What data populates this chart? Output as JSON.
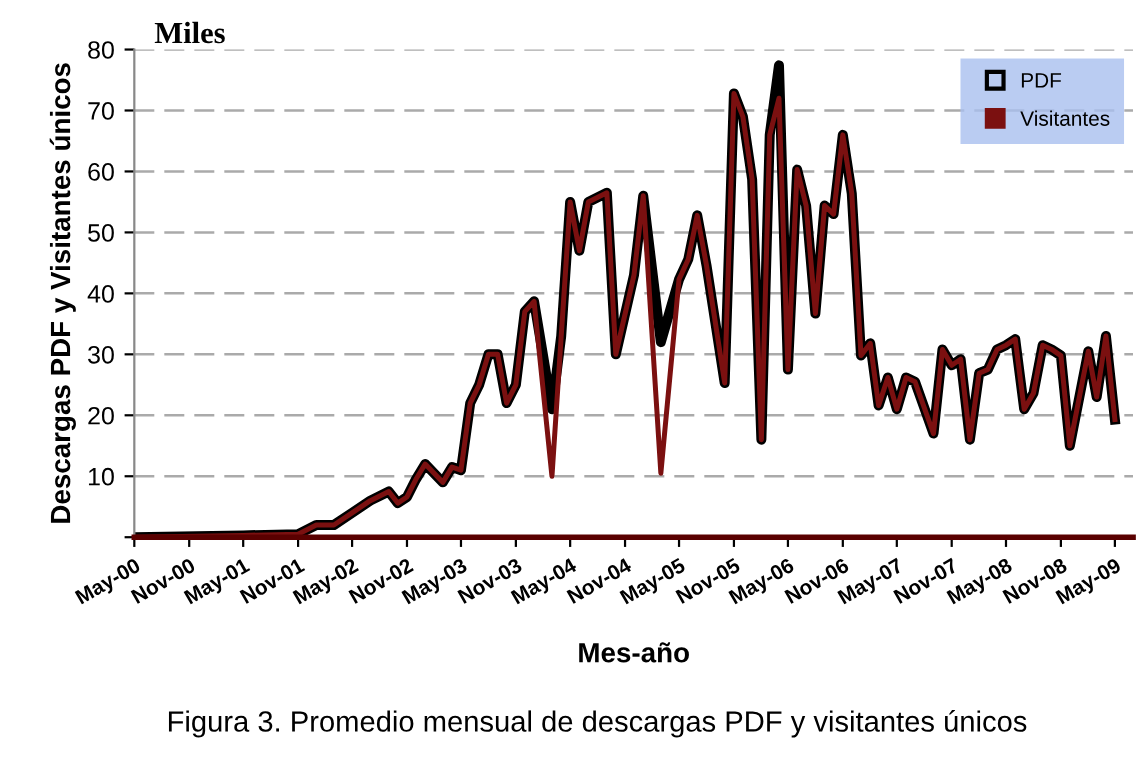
{
  "chart_data": {
    "type": "line",
    "xlabel": "Mes-año",
    "ylabel": "Descargas PDF y Visitantes únicos",
    "annotations": [
      "Miles",
      "Figura 3. Promedio mensual de descargas PDF y visitantes únicos"
    ],
    "series": [
      {
        "name": "PDF",
        "color": "#000000",
        "x": [
          "2000-05",
          "2001-05",
          "2001-11",
          "2002-01",
          "2002-03",
          "2002-05",
          "2002-07",
          "2002-09",
          "2002-10",
          "2002-11",
          "2002-12",
          "2003-01",
          "2003-03",
          "2003-04",
          "2003-05",
          "2003-06",
          "2003-07",
          "2003-08",
          "2003-09",
          "2003-10",
          "2003-11",
          "2003-12",
          "2004-01",
          "2004-03",
          "2004-04",
          "2004-05",
          "2004-06",
          "2004-07",
          "2004-09",
          "2004-10",
          "2004-12",
          "2005-01",
          "2005-03",
          "2005-05",
          "2005-06",
          "2005-07",
          "2005-08",
          "2005-10",
          "2005-11",
          "2005-12",
          "2006-01",
          "2006-02",
          "2006-03",
          "2006-04",
          "2006-05",
          "2006-06",
          "2006-07",
          "2006-08",
          "2006-09",
          "2006-10",
          "2006-11",
          "2006-12",
          "2007-01",
          "2007-02",
          "2007-03",
          "2007-04",
          "2007-05",
          "2007-06",
          "2007-07",
          "2007-09",
          "2007-10",
          "2007-11",
          "2007-12",
          "2008-01",
          "2008-02",
          "2008-03",
          "2008-04",
          "2008-05",
          "2008-06",
          "2008-07",
          "2008-08",
          "2008-09",
          "2008-10",
          "2008-11",
          "2008-12",
          "2009-02",
          "2009-03",
          "2009-04",
          "2009-05"
        ],
        "values": [
          0,
          0.3,
          0.5,
          2,
          2,
          4,
          6,
          7.5,
          5.6,
          6.6,
          9.5,
          12,
          9,
          11.5,
          11,
          22,
          25,
          30,
          30,
          22,
          25,
          37,
          38.7,
          21,
          33,
          55,
          47,
          55,
          56.5,
          30,
          43,
          56,
          32,
          42.3,
          45.6,
          52.8,
          44.6,
          25.3,
          72.8,
          69,
          58.7,
          16,
          66,
          77.4,
          27.5,
          60.3,
          54.4,
          36.7,
          54.4,
          53,
          66,
          56.4,
          29.8,
          31.8,
          21.6,
          26.2,
          21,
          26.2,
          25.5,
          17,
          30.8,
          28.2,
          29.2,
          16,
          26.9,
          27.5,
          30.8,
          31.5,
          32.5,
          21,
          23.6,
          31.5,
          30.8,
          29.8,
          15,
          30.5,
          23,
          33,
          19.3
        ]
      },
      {
        "name": "Visitantes",
        "color": "#7b1010",
        "x": [
          "2000-05",
          "2001-05",
          "2001-11",
          "2002-01",
          "2002-03",
          "2002-05",
          "2002-07",
          "2002-09",
          "2002-10",
          "2002-11",
          "2002-12",
          "2003-01",
          "2003-03",
          "2003-04",
          "2003-05",
          "2003-06",
          "2003-07",
          "2003-08",
          "2003-09",
          "2003-10",
          "2003-11",
          "2003-12",
          "2004-01",
          "2004-03",
          "2004-04",
          "2004-05",
          "2004-06",
          "2004-07",
          "2004-09",
          "2004-10",
          "2004-12",
          "2005-01",
          "2005-03",
          "2005-05",
          "2005-06",
          "2005-07",
          "2005-08",
          "2005-10",
          "2005-11",
          "2005-12",
          "2006-01",
          "2006-02",
          "2006-03",
          "2006-04",
          "2006-05",
          "2006-06",
          "2006-07",
          "2006-08",
          "2006-09",
          "2006-10",
          "2006-11",
          "2006-12",
          "2007-01",
          "2007-02",
          "2007-03",
          "2007-04",
          "2007-05",
          "2007-06",
          "2007-07",
          "2007-09",
          "2007-10",
          "2007-11",
          "2007-12",
          "2008-01",
          "2008-02",
          "2008-03",
          "2008-04",
          "2008-05",
          "2008-06",
          "2008-07",
          "2008-08",
          "2008-09",
          "2008-10",
          "2008-11",
          "2008-12",
          "2009-02",
          "2009-03",
          "2009-04",
          "2009-05"
        ],
        "values": [
          0,
          0.3,
          0.5,
          2,
          2,
          4,
          6,
          7.5,
          5.6,
          6.6,
          9.5,
          12,
          9,
          11.5,
          11,
          22,
          25,
          30,
          30,
          22,
          25,
          37,
          38.7,
          10,
          33,
          55,
          47,
          55,
          56.5,
          30,
          43,
          56,
          10.5,
          42.3,
          45.6,
          52.8,
          44.6,
          25.3,
          72.8,
          69,
          58.7,
          16,
          66,
          72,
          27.5,
          60.3,
          54.4,
          36.7,
          54.4,
          53,
          66,
          56.4,
          29.8,
          31.8,
          21.6,
          26.2,
          21,
          26.2,
          25.5,
          17,
          30.8,
          28.2,
          29.2,
          16,
          26.9,
          27.5,
          30.8,
          31.5,
          32.5,
          21,
          23.6,
          31.5,
          30.8,
          29.8,
          15,
          30.5,
          23,
          33,
          19.3
        ]
      }
    ],
    "xlim": [
      "2000-05",
      "2009-07"
    ],
    "xticks": [
      {
        "value": "2000-05",
        "label": "May-00"
      },
      {
        "value": "2000-11",
        "label": "Nov-00"
      },
      {
        "value": "2001-05",
        "label": "May-01"
      },
      {
        "value": "2001-11",
        "label": "Nov-01"
      },
      {
        "value": "2002-05",
        "label": "May-02"
      },
      {
        "value": "2002-11",
        "label": "Nov-02"
      },
      {
        "value": "2003-05",
        "label": "May-03"
      },
      {
        "value": "2003-11",
        "label": "Nov-03"
      },
      {
        "value": "2004-05",
        "label": "May-04"
      },
      {
        "value": "2004-11",
        "label": "Nov-04"
      },
      {
        "value": "2005-05",
        "label": "May-05"
      },
      {
        "value": "2005-11",
        "label": "Nov-05"
      },
      {
        "value": "2006-05",
        "label": "May-06"
      },
      {
        "value": "2006-11",
        "label": "Nov-06"
      },
      {
        "value": "2007-05",
        "label": "May-07"
      },
      {
        "value": "2007-11",
        "label": "Nov-07"
      },
      {
        "value": "2008-05",
        "label": "May-08"
      },
      {
        "value": "2008-11",
        "label": "Nov-08"
      },
      {
        "value": "2009-05",
        "label": "May-09"
      }
    ],
    "ylim": [
      0,
      80
    ],
    "yticks": [
      {
        "value": 0,
        "label": null
      },
      10,
      20,
      30,
      40,
      50,
      60,
      70,
      80
    ],
    "grid": "y",
    "legend": "top right",
    "marker": "none",
    "line_style": "solid"
  }
}
